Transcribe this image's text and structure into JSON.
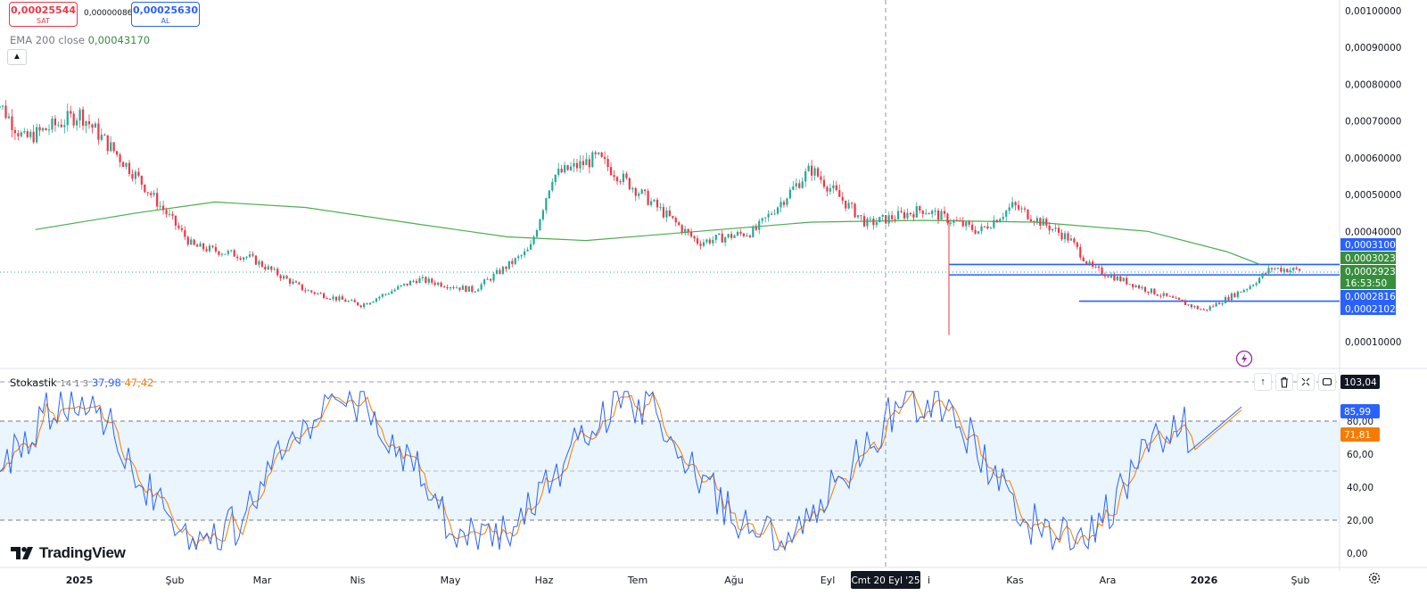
{
  "header": {
    "sell_price": "0,00025544",
    "sell_label": "SAT",
    "spread": "0,00000086",
    "buy_price": "0,00025630",
    "buy_label": "AL"
  },
  "ema_legend": {
    "name": "EMA 200 close",
    "value": "0,00043170"
  },
  "stoch_legend": {
    "name": "Stokastik",
    "params": "14 1 3",
    "k_value": "37,98",
    "d_value": "47,42"
  },
  "brand": {
    "name": "TradingView"
  },
  "icons": {
    "collapse": "chevron-up-icon",
    "lightning": "lightning-icon",
    "move_up": "arrow-up-icon",
    "delete": "trash-icon",
    "maximize": "maximize-icon",
    "fullscreen": "fullscreen-icon",
    "settings": "gear-icon"
  },
  "colors": {
    "up": "#22ab94",
    "down": "#f23645",
    "ema": "#4caf50",
    "k_line": "#2962ff",
    "d_line": "#f57c00",
    "band": "#e3f2fd",
    "price_label_green": "#388e3c",
    "axis_label_blue": "#2962ff"
  },
  "price_axis": {
    "ticks": [
      "0,00100000",
      "0,00090000",
      "0,00080000",
      "0,00070000",
      "0,00060000",
      "0,00050000",
      "0,00040000",
      "0,00010000"
    ]
  },
  "price_labels": [
    {
      "value": "0,00031000",
      "style": "blue",
      "price": 0.00031
    },
    {
      "value": "0,00030236",
      "style": "green",
      "price": 0.00030236
    },
    {
      "value": "0,00029232",
      "style": "green",
      "price": 0.00029232
    },
    {
      "value": "16:53:50",
      "style": "green-sub",
      "price": 0.000292
    },
    {
      "value": "0,00028162",
      "style": "blue",
      "price": 0.00028162
    },
    {
      "value": "0,00021027",
      "style": "blue",
      "price": 0.00021027
    }
  ],
  "stoch_axis": {
    "ticks": [
      "80,00",
      "60,00",
      "40,00",
      "20,00",
      "0,00"
    ],
    "top_label": "103,04",
    "k_label": "85,99",
    "d_label": "71,81"
  },
  "time_axis": {
    "labels": [
      "2025",
      "Şub",
      "Mar",
      "Nis",
      "May",
      "Haz",
      "Tem",
      "Ağu",
      "Eyl",
      "Kas",
      "Ara",
      "2026",
      "Şub"
    ],
    "crosshair_label": "Cmt 20 Eyl '25",
    "partial_label": "i"
  },
  "chart_data": {
    "type": "candlestick",
    "ema_period": 200,
    "price_range": [
      0.0001,
      0.00102
    ],
    "ema_path": [
      [
        2024.96,
        0.000405
      ],
      [
        2025.05,
        0.00045
      ],
      [
        2025.12,
        0.00048
      ],
      [
        2025.2,
        0.000465
      ],
      [
        2025.3,
        0.00042
      ],
      [
        2025.38,
        0.000385
      ],
      [
        2025.45,
        0.000375
      ],
      [
        2025.55,
        0.0004
      ],
      [
        2025.65,
        0.000425
      ],
      [
        2025.75,
        0.00043
      ],
      [
        2025.85,
        0.000425
      ],
      [
        2025.95,
        0.0004
      ],
      [
        2026.02,
        0.000345
      ],
      [
        2026.05,
        0.00031
      ]
    ],
    "ohlc_close_path": [
      [
        2024.9,
        0.00087
      ],
      [
        2024.95,
        0.00065
      ],
      [
        2025.0,
        0.00072
      ],
      [
        2025.05,
        0.00055
      ],
      [
        2025.1,
        0.00036
      ],
      [
        2025.15,
        0.00033
      ],
      [
        2025.2,
        0.00024
      ],
      [
        2025.25,
        0.0002
      ],
      [
        2025.3,
        0.00027
      ],
      [
        2025.35,
        0.00024
      ],
      [
        2025.4,
        0.00035
      ],
      [
        2025.42,
        0.00055
      ],
      [
        2025.46,
        0.0006
      ],
      [
        2025.5,
        0.0005
      ],
      [
        2025.55,
        0.00037
      ],
      [
        2025.6,
        0.0004
      ],
      [
        2025.65,
        0.00057
      ],
      [
        2025.7,
        0.00042
      ],
      [
        2025.75,
        0.00046
      ],
      [
        2025.8,
        0.0004
      ],
      [
        2025.83,
        0.00047
      ],
      [
        2025.88,
        0.00038
      ],
      [
        2025.9,
        0.0003
      ],
      [
        2025.95,
        0.00024
      ],
      [
        2026.0,
        0.000185
      ],
      [
        2026.04,
        0.00025
      ],
      [
        2026.06,
        0.0003
      ],
      [
        2026.08,
        0.000295
      ]
    ],
    "horizontal_lines": [
      0.00031,
      0.00028162,
      0.00021027
    ],
    "stochastic": {
      "period": "14 1 3",
      "upper_band": 80,
      "middle_band": 50,
      "lower_band": 20,
      "k_last": 37.98,
      "d_last": 47.42
    }
  }
}
